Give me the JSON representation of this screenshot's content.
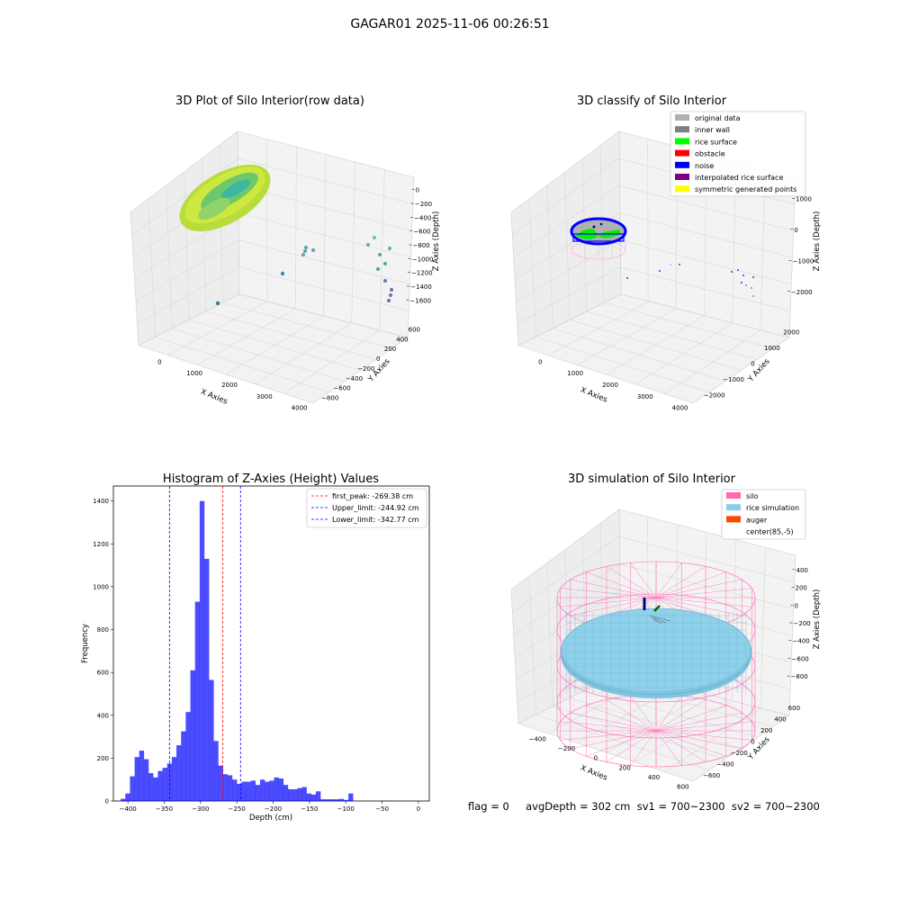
{
  "figure_title": "GAGAR01 2025-11-06 00:26:51",
  "status_line": "flag = 0     avgDepth = 302 cm  sv1 = 700~2300  sv2 = 700~2300",
  "colors": {
    "bar": "#0000ff",
    "peak_line": "#ff0000",
    "limit_line": "#0000ff",
    "silo": "#ff69b4",
    "rice_simulation": "#87ceeb",
    "auger": "#ff4500",
    "original_data": "#b0b0b0",
    "inner_wall": "#808080",
    "rice_surface": "#00ff00",
    "obstacle": "#ff0000",
    "noise": "#0000ff",
    "interpolated_rice_surface": "#800080",
    "symmetric_generated_points": "#ffff00"
  },
  "plot1": {
    "title": "3D Plot of Silo Interior(row data)",
    "xlabel": "X Axies",
    "ylabel": "Y Axies",
    "zlabel": "Z Axies (Depth)",
    "xticks": [
      "0",
      "1000",
      "2000",
      "3000",
      "4000"
    ],
    "yticks": [
      "600",
      "400",
      "200",
      "0",
      "−200",
      "−400",
      "−600",
      "−800"
    ],
    "zticks": [
      "0",
      "−200",
      "−400",
      "−600",
      "−800",
      "−1000",
      "−1200",
      "−1400",
      "−1600"
    ]
  },
  "plot2": {
    "title": "3D classify of Silo Interior",
    "xlabel": "X Axies",
    "ylabel": "Y Axies",
    "zlabel": "Z Axies (Depth)",
    "xticks": [
      "0",
      "1000",
      "2000",
      "3000",
      "4000"
    ],
    "yticks": [
      "2000",
      "1000",
      "0",
      "−1000",
      "−2000"
    ],
    "zticks": [
      "1000",
      "0",
      "−1000",
      "−2000"
    ],
    "legend": [
      "original data",
      "inner wall",
      "rice surface",
      "obstacle",
      "noise",
      "interpolated rice surface",
      "symmetric generated points"
    ]
  },
  "plot4": {
    "title": "3D simulation of Silo Interior",
    "xlabel": "X Axies",
    "ylabel": "Y Axies",
    "zlabel": "Z Axies (Depth)",
    "xticks": [
      "−400",
      "−200",
      "0",
      "200",
      "400",
      "600"
    ],
    "yticks": [
      "600",
      "400",
      "200",
      "0",
      "−200",
      "−400",
      "−600"
    ],
    "zticks": [
      "400",
      "200",
      "0",
      "−200",
      "−400",
      "−600",
      "−800"
    ],
    "legend": [
      "silo",
      "rice simulation",
      "auger",
      "center(85,-5)"
    ]
  },
  "chart_data": {
    "type": "bar",
    "title": "Histogram of Z-Axies (Height) Values",
    "xlabel": "Depth (cm)",
    "ylabel": "Frequency",
    "xlim": [
      -420,
      15
    ],
    "ylim": [
      0,
      1470
    ],
    "xticks": [
      -400,
      -350,
      -300,
      -250,
      -200,
      -150,
      -100,
      -50,
      0
    ],
    "yticks": [
      0,
      200,
      400,
      600,
      800,
      1000,
      1200,
      1400
    ],
    "bin_width": 6.4,
    "bin_start": -410,
    "values": [
      10,
      35,
      115,
      205,
      235,
      195,
      130,
      110,
      140,
      155,
      175,
      205,
      260,
      325,
      415,
      610,
      930,
      1400,
      1130,
      565,
      280,
      165,
      125,
      120,
      100,
      80,
      90,
      90,
      95,
      75,
      100,
      90,
      95,
      110,
      105,
      75,
      55,
      55,
      60,
      65,
      35,
      30,
      45,
      8,
      8,
      8,
      8,
      10,
      5,
      35
    ],
    "vlines": [
      {
        "label": "first_peak: -269.38 cm",
        "x": -269.38,
        "color": "#ff0000"
      },
      {
        "label": "Upper_limit: -244.92 cm",
        "x": -244.92,
        "color": "#0000ff"
      },
      {
        "label": "Lower_limit: -342.77 cm",
        "x": -342.77,
        "color": "#0000ff"
      }
    ]
  }
}
